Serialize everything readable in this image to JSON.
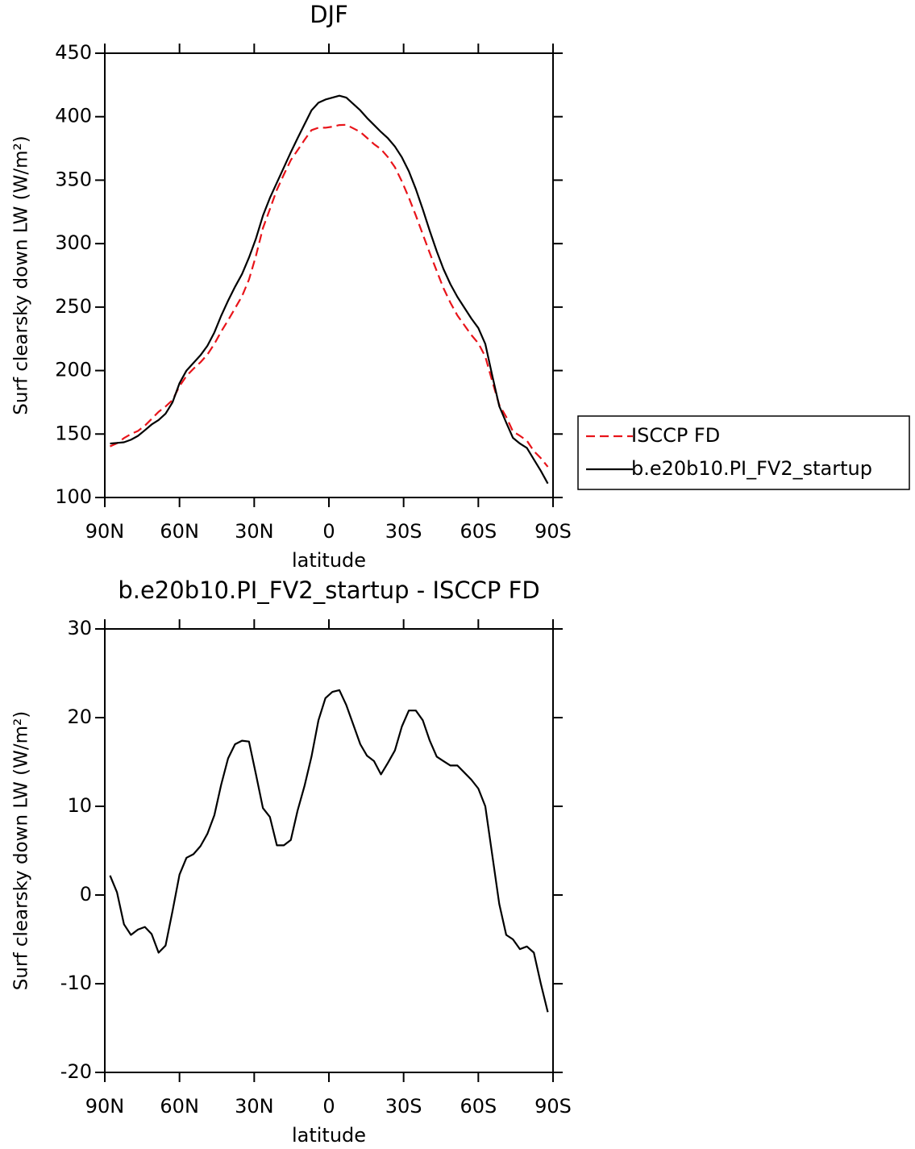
{
  "chart_data": [
    {
      "type": "line",
      "title": "DJF",
      "xlabel": "latitude",
      "ylabel": "Surf clearsky down LW (W/m²)",
      "x": [
        87.9,
        85.1,
        82.3,
        79.5,
        76.7,
        73.9,
        71.2,
        68.4,
        65.6,
        62.8,
        60.0,
        57.2,
        54.4,
        51.6,
        48.8,
        46.0,
        43.3,
        40.5,
        37.7,
        34.9,
        32.1,
        29.3,
        26.5,
        23.7,
        20.9,
        18.1,
        15.3,
        12.6,
        9.8,
        7.0,
        4.2,
        1.4,
        -1.4,
        -4.2,
        -7.0,
        -9.8,
        -12.6,
        -15.3,
        -18.1,
        -20.9,
        -23.7,
        -26.5,
        -29.3,
        -32.1,
        -34.9,
        -37.7,
        -40.5,
        -43.3,
        -46.0,
        -48.8,
        -51.6,
        -54.4,
        -57.2,
        -60.0,
        -62.8,
        -65.6,
        -68.4,
        -71.2,
        -73.9,
        -76.7,
        -79.5,
        -82.3,
        -85.1,
        -87.9
      ],
      "series": [
        {
          "name": "ISCCP FD",
          "color": "#e8141a",
          "style": "dashed",
          "values": [
            140.3,
            142.7,
            146.8,
            150,
            152.4,
            156.6,
            161.9,
            167.5,
            171.7,
            176.8,
            187.7,
            195.8,
            201.4,
            206.5,
            212.6,
            221,
            230.6,
            239.6,
            249,
            258.6,
            271.7,
            290.4,
            312.2,
            327.2,
            342.4,
            354.4,
            365.8,
            373.5,
            381.7,
            389.4,
            391.3,
            391.3,
            392.1,
            393.4,
            393.6,
            390.8,
            388,
            383.3,
            378.4,
            374.4,
            368.1,
            360.2,
            349,
            336.2,
            322.2,
            307.3,
            292.6,
            278.4,
            264.9,
            253.4,
            243.4,
            235.7,
            228,
            221.5,
            211,
            191.5,
            173,
            163.5,
            152,
            148.6,
            144.8,
            136.5,
            131,
            124.2
          ]
        },
        {
          "name": "b.e20b10.PI_FV2_startup",
          "color": "#000000",
          "style": "solid",
          "values": [
            142.5,
            143,
            143.5,
            145.5,
            148.5,
            153,
            157.5,
            161,
            166,
            175,
            190,
            200,
            206,
            212,
            219.5,
            230,
            243,
            255,
            266,
            276,
            289,
            304,
            322,
            336,
            348,
            360,
            372,
            383,
            394,
            405,
            411,
            413.5,
            415,
            416.5,
            415,
            410,
            405,
            399,
            393.5,
            388,
            383,
            376.5,
            368,
            357,
            343,
            327,
            310,
            294,
            280,
            268,
            258,
            249.5,
            241,
            233.5,
            221,
            196,
            172,
            159,
            147,
            142.5,
            139,
            130,
            121,
            111
          ]
        }
      ],
      "xlim": [
        90,
        -90
      ],
      "xticks": [
        {
          "value": 90,
          "label": "90N"
        },
        {
          "value": 60,
          "label": "60N"
        },
        {
          "value": 30,
          "label": "30N"
        },
        0,
        {
          "value": -30,
          "label": "30S"
        },
        {
          "value": -60,
          "label": "60S"
        },
        {
          "value": -90,
          "label": "90S"
        }
      ],
      "ylim": [
        100,
        450
      ],
      "yticks": [
        100,
        150,
        200,
        250,
        300,
        350,
        400,
        450
      ],
      "legend": "right"
    },
    {
      "type": "line",
      "title": "b.e20b10.PI_FV2_startup - ISCCP FD",
      "xlabel": "latitude",
      "ylabel": "Surf clearsky down LW (W/m²)",
      "x": [
        87.9,
        85.1,
        82.3,
        79.5,
        76.7,
        73.9,
        71.2,
        68.4,
        65.6,
        62.8,
        60.0,
        57.2,
        54.4,
        51.6,
        48.8,
        46.0,
        43.3,
        40.5,
        37.7,
        34.9,
        32.1,
        29.3,
        26.5,
        23.7,
        20.9,
        18.1,
        15.3,
        12.6,
        9.8,
        7.0,
        4.2,
        1.4,
        -1.4,
        -4.2,
        -7.0,
        -9.8,
        -12.6,
        -15.3,
        -18.1,
        -20.9,
        -23.7,
        -26.5,
        -29.3,
        -32.1,
        -34.9,
        -37.7,
        -40.5,
        -43.3,
        -46.0,
        -48.8,
        -51.6,
        -54.4,
        -57.2,
        -60.0,
        -62.8,
        -65.6,
        -68.4,
        -71.2,
        -73.9,
        -76.7,
        -79.5,
        -82.3,
        -85.1,
        -87.9
      ],
      "color": "#000000",
      "values": [
        2.2,
        0.3,
        -3.3,
        -4.5,
        -3.9,
        -3.6,
        -4.4,
        -6.5,
        -5.7,
        -1.8,
        2.3,
        4.2,
        4.6,
        5.5,
        6.9,
        9,
        12.4,
        15.4,
        17,
        17.4,
        17.3,
        13.6,
        9.8,
        8.8,
        5.6,
        5.6,
        6.2,
        9.5,
        12.3,
        15.6,
        19.7,
        22.2,
        22.9,
        23.1,
        21.4,
        19.2,
        17,
        15.7,
        15.1,
        13.6,
        14.9,
        16.3,
        19,
        20.8,
        20.8,
        19.7,
        17.4,
        15.6,
        15.1,
        14.6,
        14.6,
        13.8,
        13,
        12,
        10,
        4.5,
        -1,
        -4.5,
        -5,
        -6.1,
        -5.8,
        -6.5,
        -10,
        -13.2
      ],
      "xlim": [
        90,
        -90
      ],
      "xticks": [
        {
          "value": 90,
          "label": "90N"
        },
        {
          "value": 60,
          "label": "60N"
        },
        {
          "value": 30,
          "label": "30N"
        },
        0,
        {
          "value": -30,
          "label": "30S"
        },
        {
          "value": -60,
          "label": "60S"
        },
        {
          "value": -90,
          "label": "90S"
        }
      ],
      "ylim": [
        -20,
        30
      ],
      "yticks": [
        -20,
        -10,
        0,
        10,
        20,
        30
      ]
    }
  ]
}
